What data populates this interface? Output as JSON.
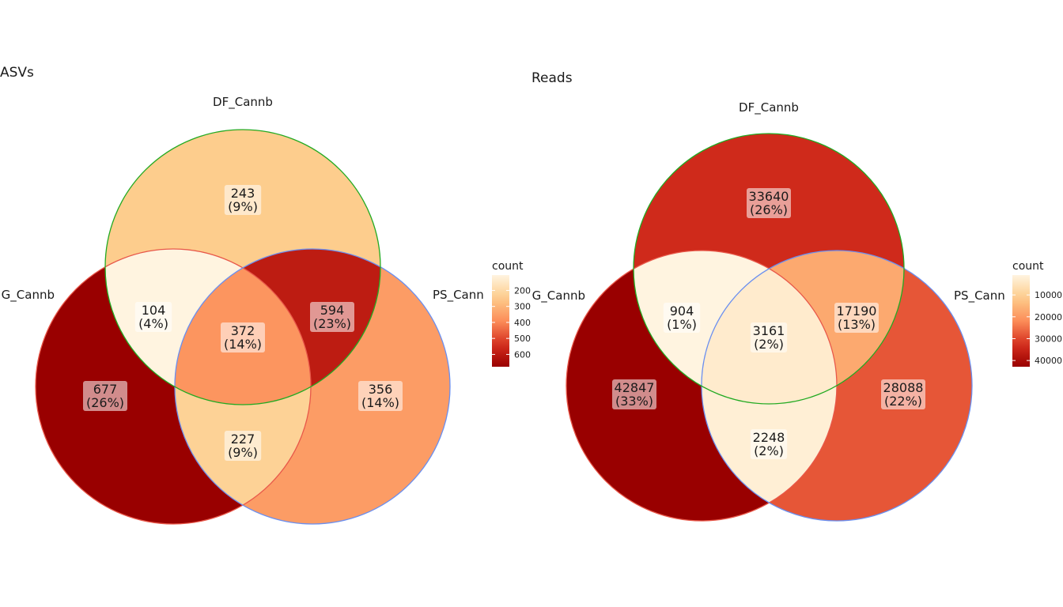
{
  "chart_data": [
    {
      "type": "venn",
      "title": "ASVs",
      "sets": [
        "DF_Cannb",
        "G_Cannb",
        "PS_Cannb"
      ],
      "set_labels_visible": [
        "DF_Cannb",
        "G_Cannb",
        "PS_Cann"
      ],
      "regions": [
        {
          "sets": [
            "DF_Cannb"
          ],
          "count": 243,
          "label": "(9%)"
        },
        {
          "sets": [
            "G_Cannb"
          ],
          "count": 677,
          "label": "(26%)"
        },
        {
          "sets": [
            "PS_Cannb"
          ],
          "count": 356,
          "label": "(14%)"
        },
        {
          "sets": [
            "DF_Cannb",
            "G_Cannb"
          ],
          "count": 104,
          "label": "(4%)"
        },
        {
          "sets": [
            "DF_Cannb",
            "PS_Cannb"
          ],
          "count": 594,
          "label": "(23%)"
        },
        {
          "sets": [
            "G_Cannb",
            "PS_Cannb"
          ],
          "count": 227,
          "label": "(9%)"
        },
        {
          "sets": [
            "DF_Cannb",
            "G_Cannb",
            "PS_Cannb"
          ],
          "count": 372,
          "label": "(14%)"
        }
      ],
      "legend": {
        "title": "count",
        "ticks": [
          "200",
          "300",
          "400",
          "500",
          "600"
        ],
        "tick_values": [
          200,
          300,
          400,
          500,
          600
        ],
        "range": [
          104,
          677
        ],
        "low_color": "#fff4e0",
        "high_color": "#990000"
      },
      "set_colors": {
        "DF_Cannb": "#22aa22",
        "G_Cannb": "#e8584a",
        "PS_Cannb": "#6a8ff0"
      }
    },
    {
      "type": "venn",
      "title": "Reads",
      "sets": [
        "DF_Cannb",
        "G_Cannb",
        "PS_Cannb"
      ],
      "set_labels_visible": [
        "DF_Cannb",
        "G_Cannb",
        "PS_Cann"
      ],
      "regions": [
        {
          "sets": [
            "DF_Cannb"
          ],
          "count": 33640,
          "label": "(26%)"
        },
        {
          "sets": [
            "G_Cannb"
          ],
          "count": 42847,
          "label": "(33%)"
        },
        {
          "sets": [
            "PS_Cannb"
          ],
          "count": 28088,
          "label": "(22%)"
        },
        {
          "sets": [
            "DF_Cannb",
            "G_Cannb"
          ],
          "count": 904,
          "label": "(1%)"
        },
        {
          "sets": [
            "DF_Cannb",
            "PS_Cannb"
          ],
          "count": 17190,
          "label": "(13%)"
        },
        {
          "sets": [
            "G_Cannb",
            "PS_Cannb"
          ],
          "count": 2248,
          "label": "(2%)"
        },
        {
          "sets": [
            "DF_Cannb",
            "G_Cannb",
            "PS_Cannb"
          ],
          "count": 3161,
          "label": "(2%)"
        }
      ],
      "legend": {
        "title": "count",
        "ticks": [
          "10000",
          "20000",
          "30000",
          "40000"
        ],
        "tick_values": [
          10000,
          20000,
          30000,
          40000
        ],
        "range": [
          904,
          42847
        ],
        "low_color": "#fff4e0",
        "high_color": "#990000"
      },
      "set_colors": {
        "DF_Cannb": "#22aa22",
        "G_Cannb": "#e8584a",
        "PS_Cannb": "#6a8ff0"
      }
    }
  ]
}
